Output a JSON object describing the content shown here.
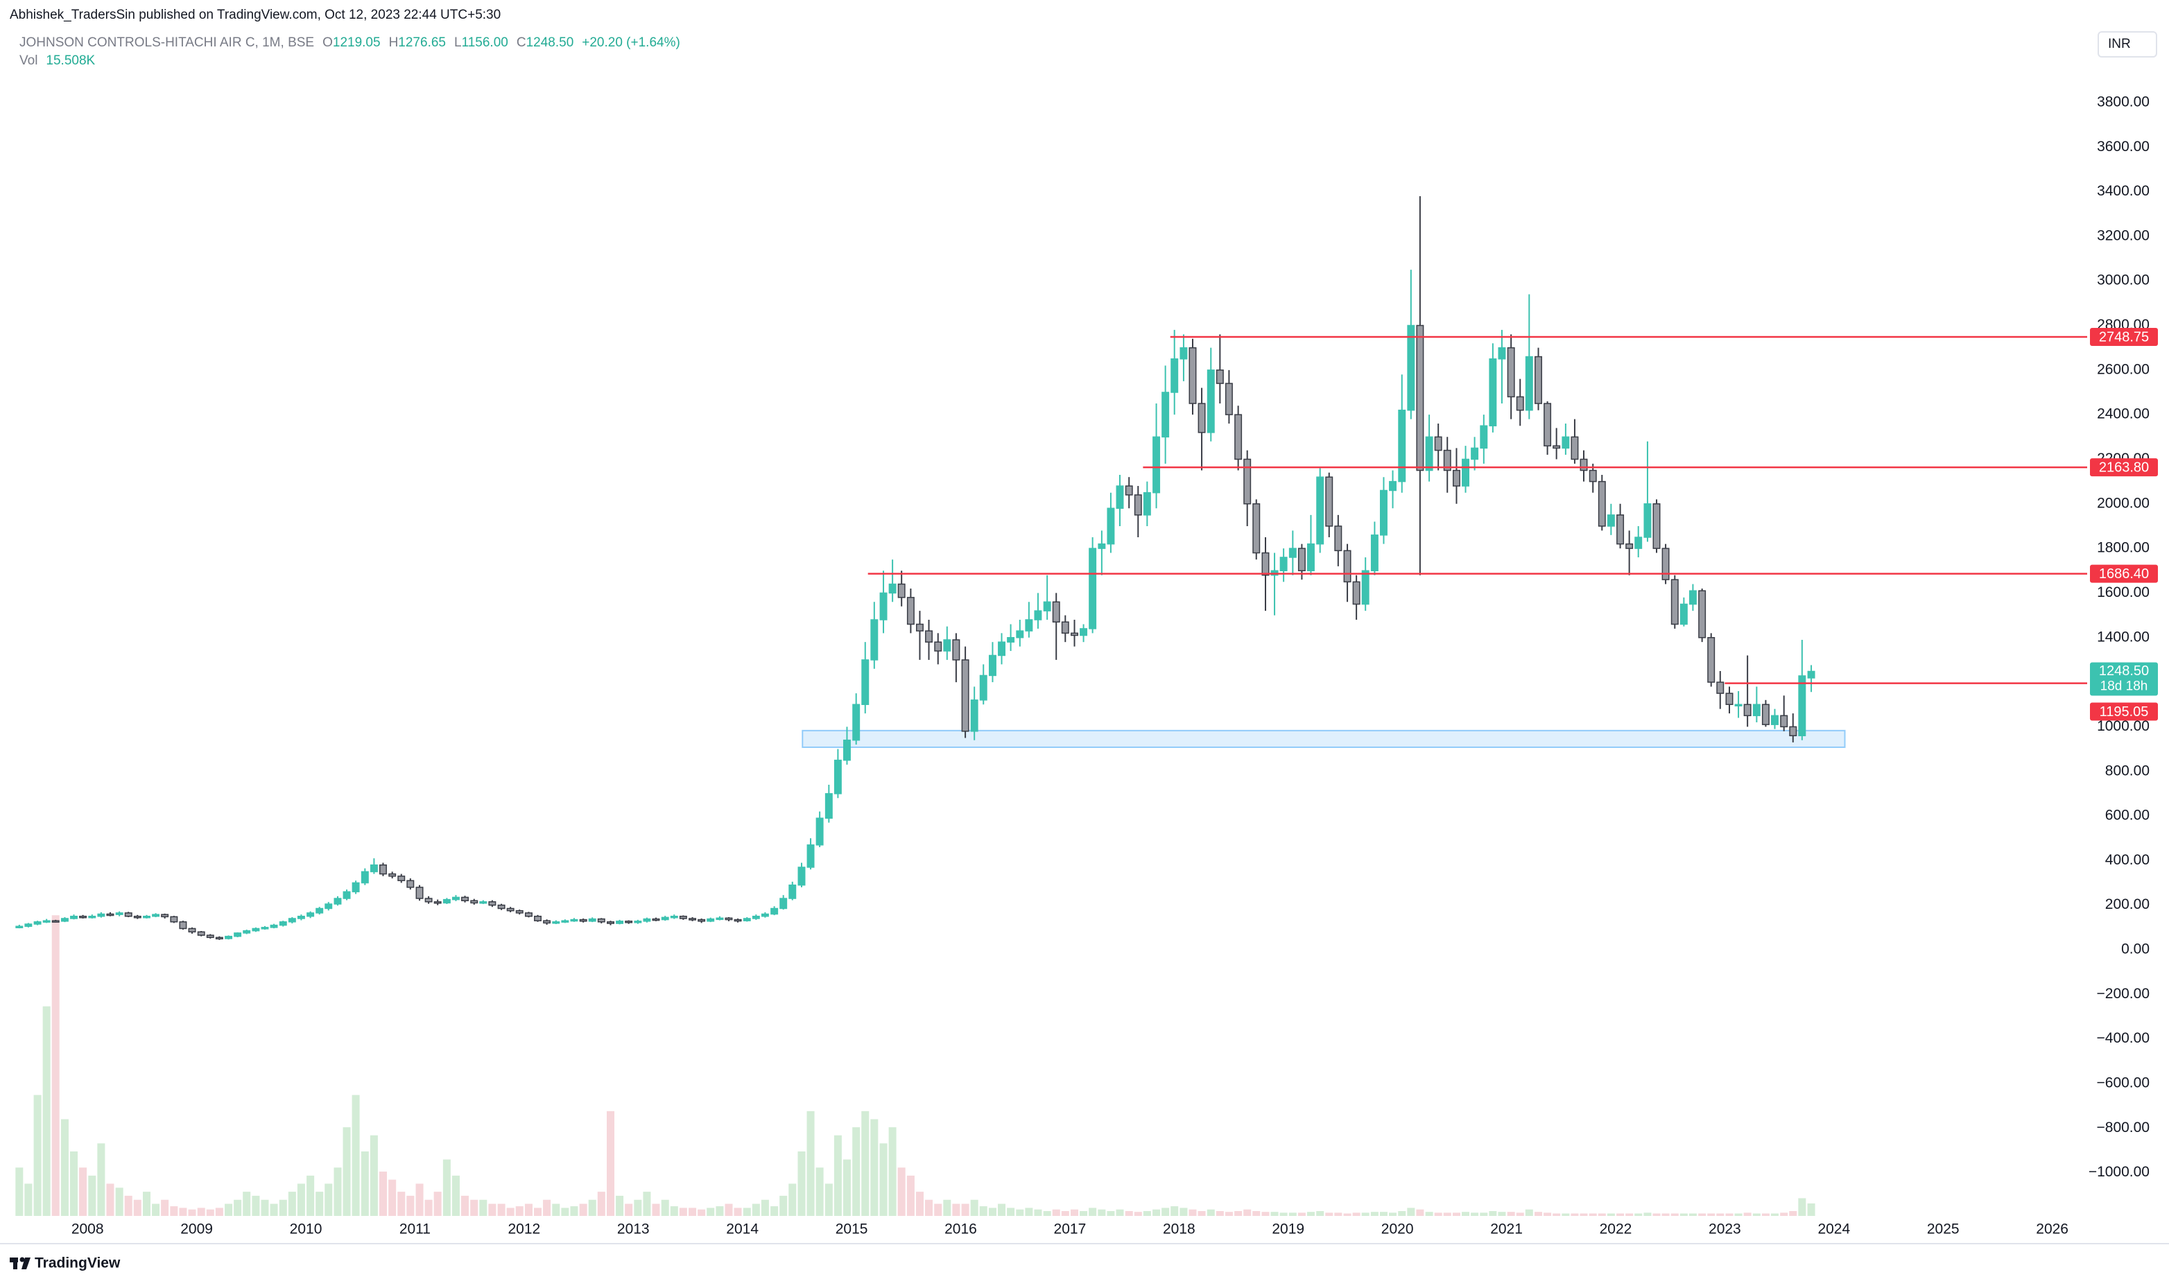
{
  "chart_data": {
    "type": "candlestick",
    "publisher": "Abhishek_TradersSin published on TradingView.com, Oct 12, 2023 22:44 UTC+5:30",
    "title": "JOHNSON CONTROLS-HITACHI AIR C, 1M, BSE",
    "ohlc_legend": [
      {
        "label": "O",
        "value": "1219.05"
      },
      {
        "label": "H",
        "value": "1276.65"
      },
      {
        "label": "L",
        "value": "1156.00"
      },
      {
        "label": "C",
        "value": "1248.50"
      }
    ],
    "change": "+20.20 (+1.64%)",
    "volume_legend": {
      "label": "Vol",
      "value": "15.508K"
    },
    "currency": "INR",
    "brand": "TradingView",
    "close_label": "1248.50",
    "countdown": "18d 18h",
    "up_color": "#3cc2b0",
    "down_color": "#9a9ca3",
    "down_border": "#3a3d46",
    "volume_up_color": "#d3ecd6",
    "volume_down_color": "#f6d6da",
    "level_color": "#f23645",
    "grid": false,
    "x": [
      2007.375,
      2007.458,
      2007.542,
      2007.625,
      2007.708,
      2007.792,
      2007.875,
      2007.958,
      2008.042,
      2008.125,
      2008.208,
      2008.292,
      2008.375,
      2008.458,
      2008.542,
      2008.625,
      2008.708,
      2008.792,
      2008.875,
      2008.958,
      2009.042,
      2009.125,
      2009.208,
      2009.292,
      2009.375,
      2009.458,
      2009.542,
      2009.625,
      2009.708,
      2009.792,
      2009.875,
      2009.958,
      2010.042,
      2010.125,
      2010.208,
      2010.292,
      2010.375,
      2010.458,
      2010.542,
      2010.625,
      2010.708,
      2010.792,
      2010.875,
      2010.958,
      2011.042,
      2011.125,
      2011.208,
      2011.292,
      2011.375,
      2011.458,
      2011.542,
      2011.625,
      2011.708,
      2011.792,
      2011.875,
      2011.958,
      2012.042,
      2012.125,
      2012.208,
      2012.292,
      2012.375,
      2012.458,
      2012.542,
      2012.625,
      2012.708,
      2012.792,
      2012.875,
      2012.958,
      2013.042,
      2013.125,
      2013.208,
      2013.292,
      2013.375,
      2013.458,
      2013.542,
      2013.625,
      2013.708,
      2013.792,
      2013.875,
      2013.958,
      2014.042,
      2014.125,
      2014.208,
      2014.292,
      2014.375,
      2014.458,
      2014.542,
      2014.625,
      2014.708,
      2014.792,
      2014.875,
      2014.958,
      2015.042,
      2015.125,
      2015.208,
      2015.292,
      2015.375,
      2015.458,
      2015.542,
      2015.625,
      2015.708,
      2015.792,
      2015.875,
      2015.958,
      2016.042,
      2016.125,
      2016.208,
      2016.292,
      2016.375,
      2016.458,
      2016.542,
      2016.625,
      2016.708,
      2016.792,
      2016.875,
      2016.958,
      2017.042,
      2017.125,
      2017.208,
      2017.292,
      2017.375,
      2017.458,
      2017.542,
      2017.625,
      2017.708,
      2017.792,
      2017.875,
      2017.958,
      2018.042,
      2018.125,
      2018.208,
      2018.292,
      2018.375,
      2018.458,
      2018.542,
      2018.625,
      2018.708,
      2018.792,
      2018.875,
      2018.958,
      2019.042,
      2019.125,
      2019.208,
      2019.292,
      2019.375,
      2019.458,
      2019.542,
      2019.625,
      2019.708,
      2019.792,
      2019.875,
      2019.958,
      2020.042,
      2020.125,
      2020.208,
      2020.292,
      2020.375,
      2020.458,
      2020.542,
      2020.625,
      2020.708,
      2020.792,
      2020.875,
      2020.958,
      2021.042,
      2021.125,
      2021.208,
      2021.292,
      2021.375,
      2021.458,
      2021.542,
      2021.625,
      2021.708,
      2021.792,
      2021.875,
      2021.958,
      2022.042,
      2022.125,
      2022.208,
      2022.292,
      2022.375,
      2022.458,
      2022.542,
      2022.625,
      2022.708,
      2022.792,
      2022.875,
      2022.958,
      2023.042,
      2023.125,
      2023.208,
      2023.292,
      2023.375,
      2023.458,
      2023.542,
      2023.625,
      2023.708,
      2023.792
    ],
    "open": [
      100,
      105,
      115,
      125,
      130,
      128,
      140,
      150,
      148,
      150,
      160,
      158,
      165,
      150,
      145,
      150,
      158,
      148,
      125,
      95,
      80,
      65,
      55,
      50,
      60,
      75,
      85,
      95,
      100,
      110,
      125,
      140,
      150,
      165,
      185,
      205,
      230,
      260,
      300,
      350,
      380,
      340,
      330,
      310,
      280,
      230,
      215,
      210,
      225,
      235,
      220,
      210,
      215,
      200,
      185,
      175,
      165,
      150,
      130,
      120,
      125,
      130,
      135,
      128,
      138,
      125,
      118,
      128,
      122,
      128,
      138,
      135,
      145,
      150,
      140,
      135,
      128,
      138,
      142,
      135,
      130,
      140,
      150,
      160,
      185,
      230,
      290,
      370,
      470,
      590,
      700,
      850,
      940,
      1100,
      1300,
      1480,
      1600,
      1640,
      1580,
      1460,
      1430,
      1380,
      1340,
      1390,
      1300,
      980,
      1120,
      1230,
      1320,
      1380,
      1400,
      1430,
      1480,
      1520,
      1560,
      1470,
      1420,
      1410,
      1440,
      1800,
      1820,
      1980,
      2080,
      2040,
      1950,
      2050,
      2300,
      2500,
      2650,
      2700,
      2450,
      2320,
      2600,
      2540,
      2400,
      2200,
      2000,
      1780,
      1680,
      1700,
      1760,
      1800,
      1700,
      1820,
      2120,
      1900,
      1790,
      1650,
      1550,
      1700,
      1860,
      2060,
      2100,
      2420,
      2800,
      2150,
      2300,
      2240,
      2150,
      2080,
      2200,
      2250,
      2350,
      2650,
      2700,
      2480,
      2420,
      2660,
      2450,
      2260,
      2250,
      2300,
      2200,
      2150,
      2100,
      1900,
      1950,
      1820,
      1800,
      1850,
      2000,
      1800,
      1660,
      1460,
      1550,
      1610,
      1400,
      1200,
      1150,
      1100,
      1100,
      1050,
      1100,
      1010,
      1050,
      1000,
      960,
      1219.05
    ],
    "high": [
      112,
      120,
      130,
      138,
      134,
      146,
      158,
      156,
      158,
      168,
      168,
      172,
      170,
      156,
      156,
      164,
      162,
      152,
      130,
      100,
      84,
      70,
      60,
      64,
      78,
      90,
      100,
      106,
      116,
      130,
      146,
      158,
      172,
      192,
      214,
      240,
      270,
      310,
      365,
      410,
      390,
      350,
      340,
      320,
      290,
      240,
      225,
      232,
      245,
      242,
      228,
      222,
      222,
      206,
      192,
      180,
      170,
      156,
      136,
      132,
      136,
      142,
      140,
      145,
      142,
      130,
      134,
      132,
      134,
      144,
      144,
      152,
      158,
      154,
      146,
      140,
      144,
      150,
      146,
      140,
      146,
      158,
      168,
      195,
      245,
      305,
      390,
      500,
      620,
      740,
      900,
      1000,
      1150,
      1380,
      1560,
      1700,
      1750,
      1700,
      1620,
      1520,
      1480,
      1420,
      1450,
      1420,
      1360,
      1180,
      1280,
      1380,
      1420,
      1460,
      1480,
      1560,
      1600,
      1680,
      1600,
      1500,
      1480,
      1460,
      1850,
      1880,
      2050,
      2130,
      2120,
      2080,
      2100,
      2450,
      2620,
      2780,
      2760,
      2740,
      2520,
      2700,
      2760,
      2600,
      2440,
      2240,
      2020,
      1850,
      1780,
      1800,
      1880,
      1820,
      1950,
      2160,
      2140,
      1950,
      1820,
      1680,
      1760,
      1920,
      2120,
      2150,
      2580,
      3050,
      3380,
      2400,
      2360,
      2300,
      2250,
      2260,
      2300,
      2400,
      2720,
      2780,
      2760,
      2560,
      2940,
      2700,
      2460,
      2340,
      2360,
      2380,
      2240,
      2180,
      2130,
      2000,
      2000,
      1880,
      1900,
      2280,
      2020,
      1820,
      1680,
      1580,
      1640,
      1620,
      1420,
      1250,
      1180,
      1160,
      1320,
      1180,
      1120,
      1080,
      1140,
      1060,
      1390,
      1276.65
    ],
    "low": [
      96,
      100,
      110,
      120,
      122,
      124,
      136,
      140,
      140,
      144,
      150,
      150,
      146,
      138,
      140,
      146,
      140,
      120,
      90,
      72,
      60,
      50,
      44,
      46,
      56,
      70,
      80,
      90,
      96,
      104,
      118,
      132,
      142,
      158,
      176,
      198,
      222,
      250,
      290,
      340,
      330,
      320,
      300,
      270,
      220,
      206,
      200,
      205,
      218,
      212,
      202,
      205,
      192,
      178,
      168,
      158,
      145,
      125,
      112,
      115,
      120,
      125,
      122,
      124,
      118,
      110,
      114,
      116,
      116,
      122,
      128,
      130,
      138,
      134,
      128,
      120,
      124,
      132,
      128,
      122,
      126,
      134,
      144,
      155,
      180,
      222,
      280,
      360,
      460,
      570,
      680,
      830,
      920,
      1060,
      1260,
      1420,
      1560,
      1540,
      1420,
      1300,
      1300,
      1280,
      1300,
      1200,
      950,
      940,
      1100,
      1200,
      1280,
      1340,
      1360,
      1400,
      1440,
      1480,
      1300,
      1380,
      1360,
      1380,
      1420,
      1680,
      1780,
      1900,
      1980,
      1850,
      1900,
      1980,
      2180,
      2400,
      2550,
      2400,
      2150,
      2280,
      2450,
      2360,
      2150,
      1900,
      1750,
      1520,
      1500,
      1650,
      1680,
      1660,
      1680,
      1780,
      1850,
      1720,
      1560,
      1480,
      1520,
      1680,
      1820,
      1980,
      2050,
      2380,
      1680,
      2100,
      2150,
      2050,
      2000,
      2050,
      2150,
      2180,
      2320,
      2450,
      2380,
      2350,
      2380,
      2420,
      2220,
      2200,
      2220,
      2180,
      2100,
      2050,
      1880,
      1860,
      1800,
      1680,
      1760,
      1830,
      1780,
      1640,
      1440,
      1450,
      1520,
      1380,
      1180,
      1080,
      1060,
      1040,
      1000,
      1020,
      1000,
      990,
      980,
      930,
      940,
      1156
    ],
    "close": [
      105,
      115,
      125,
      130,
      128,
      140,
      150,
      148,
      150,
      160,
      158,
      165,
      150,
      145,
      150,
      158,
      148,
      125,
      95,
      80,
      65,
      55,
      50,
      60,
      75,
      85,
      95,
      100,
      110,
      125,
      140,
      150,
      165,
      185,
      205,
      230,
      260,
      300,
      350,
      380,
      340,
      330,
      310,
      280,
      230,
      215,
      210,
      225,
      235,
      220,
      210,
      215,
      200,
      185,
      175,
      165,
      150,
      130,
      120,
      125,
      130,
      135,
      128,
      138,
      125,
      118,
      128,
      122,
      128,
      138,
      135,
      145,
      150,
      140,
      135,
      128,
      138,
      142,
      135,
      130,
      140,
      150,
      160,
      185,
      230,
      290,
      370,
      470,
      590,
      700,
      850,
      940,
      1100,
      1300,
      1480,
      1600,
      1640,
      1580,
      1460,
      1430,
      1380,
      1340,
      1390,
      1300,
      980,
      1120,
      1230,
      1320,
      1380,
      1400,
      1430,
      1480,
      1520,
      1560,
      1470,
      1420,
      1410,
      1440,
      1800,
      1820,
      1980,
      2080,
      2040,
      1950,
      2050,
      2300,
      2500,
      2650,
      2700,
      2450,
      2320,
      2600,
      2540,
      2400,
      2200,
      2000,
      1780,
      1680,
      1700,
      1760,
      1800,
      1700,
      1820,
      2120,
      1900,
      1790,
      1650,
      1550,
      1700,
      1860,
      2060,
      2100,
      2420,
      2800,
      2150,
      2300,
      2240,
      2150,
      2080,
      2200,
      2250,
      2350,
      2650,
      2700,
      2480,
      2420,
      2660,
      2450,
      2260,
      2250,
      2300,
      2200,
      2150,
      2100,
      1900,
      1950,
      1820,
      1800,
      1850,
      2000,
      1800,
      1660,
      1460,
      1550,
      1610,
      1400,
      1200,
      1150,
      1100,
      1100,
      1050,
      1100,
      1010,
      1050,
      1000,
      960,
      1228.3,
      1248.5
    ],
    "volume": [
      60,
      40,
      150,
      260,
      373,
      120,
      80,
      60,
      50,
      90,
      40,
      35,
      25,
      20,
      30,
      15,
      20,
      12,
      10,
      8,
      10,
      8,
      10,
      15,
      20,
      30,
      25,
      20,
      15,
      20,
      30,
      40,
      50,
      30,
      40,
      60,
      110,
      150,
      80,
      100,
      55,
      45,
      30,
      25,
      40,
      20,
      30,
      70,
      50,
      25,
      20,
      20,
      15,
      15,
      10,
      12,
      15,
      10,
      20,
      15,
      10,
      12,
      15,
      20,
      30,
      130,
      25,
      15,
      20,
      30,
      15,
      20,
      12,
      10,
      10,
      8,
      10,
      12,
      15,
      10,
      10,
      15,
      20,
      12,
      25,
      40,
      80,
      130,
      60,
      40,
      100,
      70,
      110,
      130,
      120,
      90,
      110,
      60,
      50,
      30,
      20,
      15,
      20,
      15,
      15,
      20,
      12,
      10,
      15,
      10,
      8,
      10,
      8,
      6,
      8,
      6,
      8,
      6,
      10,
      8,
      6,
      8,
      6,
      5,
      6,
      8,
      10,
      12,
      10,
      8,
      6,
      8,
      6,
      5,
      6,
      8,
      6,
      5,
      5,
      4,
      4,
      4,
      5,
      6,
      4,
      4,
      3,
      4,
      4,
      5,
      5,
      4,
      6,
      10,
      8,
      5,
      4,
      4,
      4,
      5,
      4,
      4,
      6,
      5,
      5,
      4,
      8,
      5,
      4,
      3,
      3,
      3,
      3,
      3,
      3,
      3,
      3,
      3,
      3,
      4,
      3,
      3,
      3,
      3,
      3,
      3,
      3,
      3,
      3,
      3,
      4,
      3,
      3,
      3,
      4,
      6,
      22,
      15.508
    ],
    "xlim": [
      2007.3,
      2026.32
    ],
    "xticks": [
      2008,
      2009,
      2010,
      2011,
      2012,
      2013,
      2014,
      2015,
      2016,
      2017,
      2018,
      2019,
      2020,
      2021,
      2022,
      2023,
      2024,
      2025,
      2026
    ],
    "ylim": [
      -1194,
      3980
    ],
    "yticks": [
      {
        "value": 3800,
        "label": "3800.00"
      },
      {
        "value": 3600,
        "label": "3600.00"
      },
      {
        "value": 3400,
        "label": "3400.00"
      },
      {
        "value": 3200,
        "label": "3200.00"
      },
      {
        "value": 3000,
        "label": "3000.00"
      },
      {
        "value": 2800,
        "label": "2800.00"
      },
      {
        "value": 2600,
        "label": "2600.00"
      },
      {
        "value": 2400,
        "label": "2400.00"
      },
      {
        "value": 2200,
        "label": "2200.00"
      },
      {
        "value": 2000,
        "label": "2000.00"
      },
      {
        "value": 1800,
        "label": "1800.00"
      },
      {
        "value": 1600,
        "label": "1600.00"
      },
      {
        "value": 1400,
        "label": "1400.00"
      },
      {
        "value": 1200,
        "label": "1200.00"
      },
      {
        "value": 1000,
        "label": "1000.00"
      },
      {
        "value": 800,
        "label": "800.00"
      },
      {
        "value": 600,
        "label": "600.00"
      },
      {
        "value": 400,
        "label": "400.00"
      },
      {
        "value": 200,
        "label": "200.00"
      },
      {
        "value": 0,
        "label": "0.00"
      },
      {
        "value": -200,
        "label": "−200.00"
      },
      {
        "value": -400,
        "label": "−400.00"
      },
      {
        "value": -600,
        "label": "−600.00"
      },
      {
        "value": -800,
        "label": "−800.00"
      },
      {
        "value": -1000,
        "label": "−1000.00"
      }
    ],
    "volume_ylim": [
      0,
      1431
    ],
    "levels": [
      {
        "value": 2748.75,
        "label": "2748.75",
        "from": 2017.92
      },
      {
        "value": 2163.8,
        "label": "2163.80",
        "from": 2017.67
      },
      {
        "value": 1686.4,
        "label": "1686.40",
        "from": 2015.15
      },
      {
        "value": 1195.05,
        "label": "1195.05",
        "from": 2023.0
      }
    ],
    "zone": {
      "x": [
        2014.55,
        2024.1
      ],
      "y": [
        908,
        983
      ],
      "color": "#2196f3"
    }
  }
}
